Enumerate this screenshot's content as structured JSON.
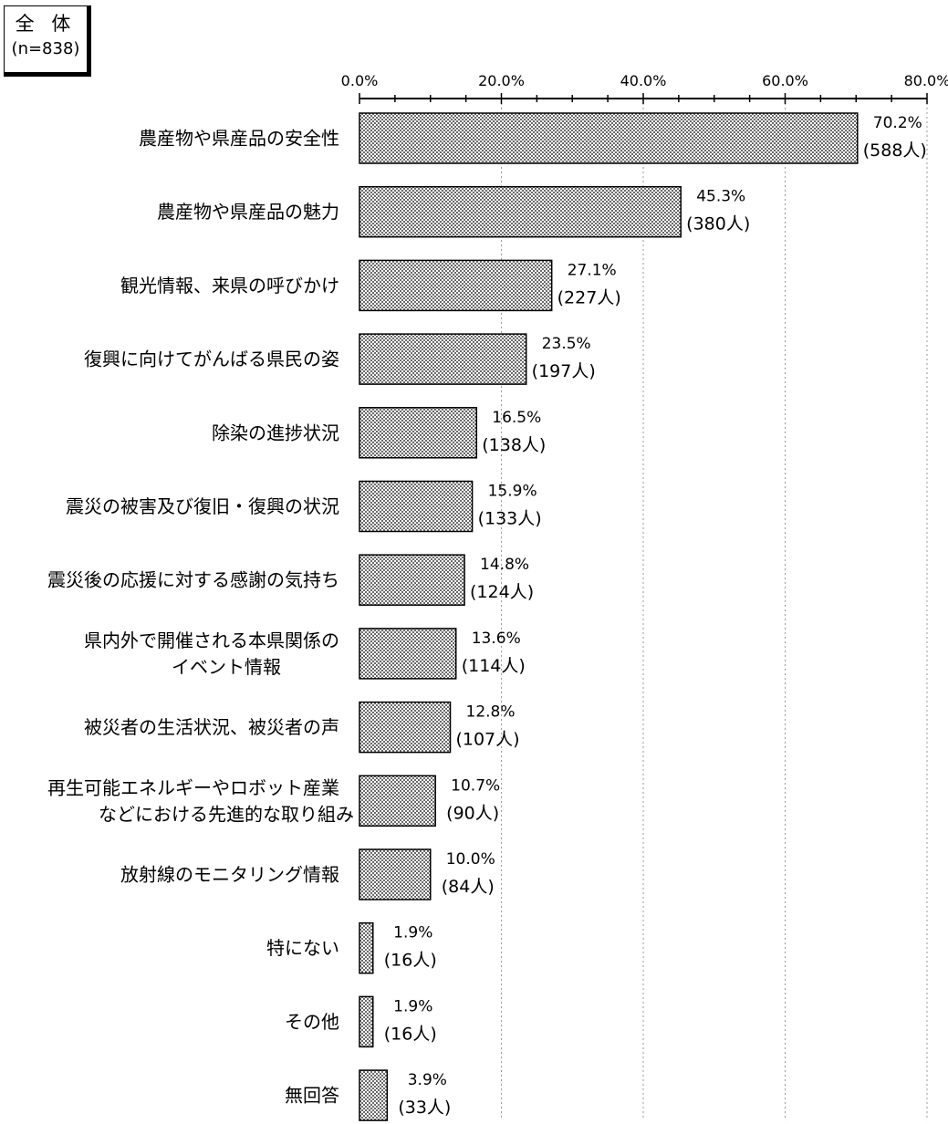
{
  "legend": {
    "title": "全 体",
    "n": "(n=838)"
  },
  "chart_data": {
    "type": "bar",
    "orientation": "horizontal",
    "xlim": [
      0,
      80
    ],
    "tick_labels": [
      "0.0%",
      "20.0%",
      "40.0%",
      "60.0%",
      "80.0%"
    ],
    "ticks": [
      0,
      20,
      40,
      60,
      80
    ],
    "minor_tick_step": 5,
    "categories": [
      [
        "農産物や県産品の安全性"
      ],
      [
        "農産物や県産品の魅力"
      ],
      [
        "観光情報、来県の呼びかけ"
      ],
      [
        "復興に向けてがんばる県民の姿"
      ],
      [
        "除染の進捗状況"
      ],
      [
        "震災の被害及び復旧・復興の状況"
      ],
      [
        "震災後の応援に対する感謝の気持ち"
      ],
      [
        "県内外で開催される本県関係の",
        "イベント情報"
      ],
      [
        "被災者の生活状況、被災者の声"
      ],
      [
        "再生可能エネルギーやロボット産業",
        "などにおける先進的な取り組み"
      ],
      [
        "放射線のモニタリング情報"
      ],
      [
        "特にない"
      ],
      [
        "その他"
      ],
      [
        "無回答"
      ]
    ],
    "values": [
      70.2,
      45.3,
      27.1,
      23.5,
      16.5,
      15.9,
      14.8,
      13.6,
      12.8,
      10.7,
      10.0,
      1.9,
      1.9,
      3.9
    ],
    "value_labels": [
      "70.2%",
      "45.3%",
      "27.1%",
      "23.5%",
      "16.5%",
      "15.9%",
      "14.8%",
      "13.6%",
      "12.8%",
      "10.7%",
      "10.0%",
      "1.9%",
      "1.9%",
      "3.9%"
    ],
    "count_labels": [
      "(588人)",
      "(380人)",
      "(227人)",
      "(197人)",
      "(138人)",
      "(133人)",
      "(124人)",
      "(114人)",
      "(107人)",
      "(90人)",
      "(84人)",
      "(16人)",
      "(16人)",
      "(33人)"
    ],
    "bar_color": "#c8c8c8",
    "grid": true
  }
}
